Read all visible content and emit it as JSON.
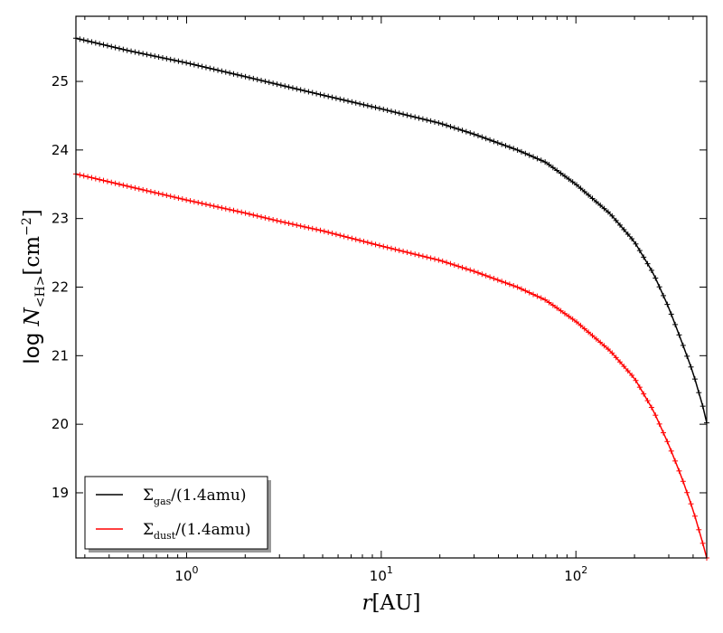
{
  "chart_data": {
    "type": "line",
    "xscale": "log",
    "xlim": [
      0.27,
      470
    ],
    "ylim": [
      18.05,
      25.95
    ],
    "xlabel_var": "r",
    "xlabel_unit": "[AU]",
    "ylabel_prefix": "log ",
    "ylabel_var": "N",
    "ylabel_sub": "<H>",
    "ylabel_unit": "[cm",
    "ylabel_exp": "−2",
    "ylabel_close": "]",
    "x_ticks": [
      {
        "value": 1,
        "base": "10",
        "exp": "0"
      },
      {
        "value": 10,
        "base": "10",
        "exp": "1"
      },
      {
        "value": 100,
        "base": "10",
        "exp": "2"
      }
    ],
    "y_ticks": [
      19,
      20,
      21,
      22,
      23,
      24,
      25
    ],
    "legend_position": "lower left",
    "series": [
      {
        "sym": "Σ",
        "sub": "gas",
        "rest": "/(1.4amu)",
        "color": "#000000",
        "points": [
          [
            0.27,
            25.63
          ],
          [
            0.5,
            25.45
          ],
          [
            1,
            25.27
          ],
          [
            2,
            25.07
          ],
          [
            3,
            24.95
          ],
          [
            5,
            24.8
          ],
          [
            10,
            24.6
          ],
          [
            20,
            24.39
          ],
          [
            30,
            24.23
          ],
          [
            50,
            24.0
          ],
          [
            70,
            23.82
          ],
          [
            100,
            23.5
          ],
          [
            150,
            23.07
          ],
          [
            200,
            22.66
          ],
          [
            250,
            22.2
          ],
          [
            300,
            21.7
          ],
          [
            350,
            21.2
          ],
          [
            400,
            20.75
          ],
          [
            450,
            20.25
          ],
          [
            470,
            20.02
          ]
        ]
      },
      {
        "sym": "Σ",
        "sub": "dust",
        "rest": "/(1.4amu)",
        "color": "#ff0000",
        "points": [
          [
            0.27,
            23.65
          ],
          [
            0.5,
            23.47
          ],
          [
            1,
            23.27
          ],
          [
            2,
            23.08
          ],
          [
            3,
            22.96
          ],
          [
            5,
            22.82
          ],
          [
            10,
            22.6
          ],
          [
            20,
            22.39
          ],
          [
            30,
            22.23
          ],
          [
            50,
            22.0
          ],
          [
            70,
            21.81
          ],
          [
            100,
            21.5
          ],
          [
            150,
            21.07
          ],
          [
            200,
            20.67
          ],
          [
            250,
            20.2
          ],
          [
            300,
            19.7
          ],
          [
            350,
            19.22
          ],
          [
            400,
            18.75
          ],
          [
            450,
            18.25
          ],
          [
            470,
            18.05
          ]
        ]
      }
    ]
  }
}
